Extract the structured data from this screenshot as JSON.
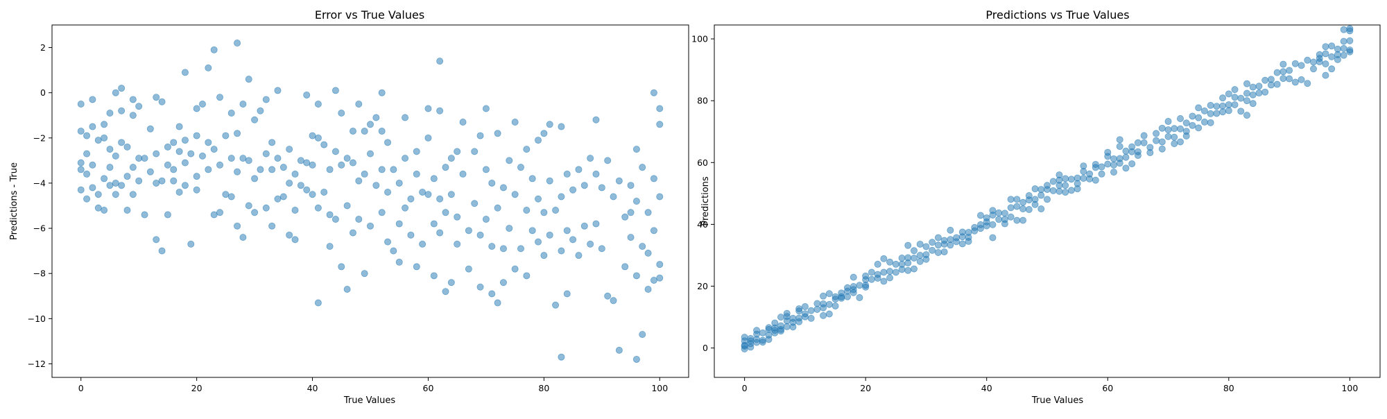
{
  "chart_data": [
    {
      "type": "scatter",
      "title": "Error vs True Values",
      "xlabel": "True Values",
      "ylabel": "Predictions - True",
      "xlim": [
        -5,
        105
      ],
      "ylim": [
        -12.6,
        3.0
      ],
      "xticks": [
        0,
        20,
        40,
        60,
        80,
        100
      ],
      "yticks": [
        -12,
        -10,
        -8,
        -6,
        -4,
        -2,
        0,
        2
      ],
      "grid": false,
      "marker_color": "#1f77b4",
      "marker_opacity": 0.5,
      "points": [
        [
          0,
          -0.5
        ],
        [
          0,
          -1.7
        ],
        [
          0,
          -3.1
        ],
        [
          0,
          -3.4
        ],
        [
          0,
          -4.3
        ],
        [
          1,
          -1.9
        ],
        [
          1,
          -2.7
        ],
        [
          1,
          -3.6
        ],
        [
          1,
          -4.7
        ],
        [
          2,
          -0.3
        ],
        [
          2,
          -1.5
        ],
        [
          2,
          -3.2
        ],
        [
          2,
          -4.2
        ],
        [
          3,
          -2.1
        ],
        [
          3,
          -4.5
        ],
        [
          3,
          -5.1
        ],
        [
          4,
          -1.4
        ],
        [
          4,
          -2.0
        ],
        [
          4,
          -3.8
        ],
        [
          4,
          -5.2
        ],
        [
          5,
          -0.9
        ],
        [
          5,
          -2.5
        ],
        [
          5,
          -3.3
        ],
        [
          5,
          -4.1
        ],
        [
          6,
          0.0
        ],
        [
          6,
          -2.8
        ],
        [
          6,
          -4.0
        ],
        [
          6,
          -4.5
        ],
        [
          7,
          0.2
        ],
        [
          7,
          -0.8
        ],
        [
          7,
          -2.2
        ],
        [
          7,
          -4.1
        ],
        [
          8,
          -2.4
        ],
        [
          8,
          -3.7
        ],
        [
          8,
          -5.2
        ],
        [
          9,
          -0.3
        ],
        [
          9,
          -1.0
        ],
        [
          9,
          -3.3
        ],
        [
          9,
          -4.5
        ],
        [
          10,
          -0.6
        ],
        [
          10,
          -2.9
        ],
        [
          10,
          -3.9
        ],
        [
          11,
          -5.4
        ],
        [
          11,
          -2.9
        ],
        [
          12,
          -1.6
        ],
        [
          12,
          -3.5
        ],
        [
          13,
          -0.2
        ],
        [
          13,
          -2.7
        ],
        [
          13,
          -4.0
        ],
        [
          13,
          -6.5
        ],
        [
          14,
          -0.4
        ],
        [
          14,
          -3.9
        ],
        [
          14,
          -7.0
        ],
        [
          15,
          -2.4
        ],
        [
          15,
          -3.2
        ],
        [
          15,
          -5.4
        ],
        [
          16,
          -2.2
        ],
        [
          16,
          -3.4
        ],
        [
          16,
          -3.9
        ],
        [
          17,
          -1.5
        ],
        [
          17,
          -2.6
        ],
        [
          17,
          -4.4
        ],
        [
          18,
          -2.1
        ],
        [
          18,
          -3.1
        ],
        [
          18,
          -4.1
        ],
        [
          18,
          0.9
        ],
        [
          19,
          -2.7
        ],
        [
          19,
          -6.7
        ],
        [
          20,
          -0.7
        ],
        [
          20,
          -1.9
        ],
        [
          20,
          -3.7
        ],
        [
          20,
          -4.3
        ],
        [
          21,
          -0.5
        ],
        [
          21,
          -2.8
        ],
        [
          22,
          1.1
        ],
        [
          22,
          -2.2
        ],
        [
          22,
          -3.4
        ],
        [
          23,
          1.9
        ],
        [
          23,
          -2.5
        ],
        [
          23,
          -5.4
        ],
        [
          24,
          -0.2
        ],
        [
          24,
          -3.2
        ],
        [
          24,
          -5.3
        ],
        [
          25,
          -1.9
        ],
        [
          25,
          -4.5
        ],
        [
          26,
          -0.9
        ],
        [
          26,
          -2.9
        ],
        [
          26,
          -4.6
        ],
        [
          27,
          2.2
        ],
        [
          27,
          -1.8
        ],
        [
          27,
          -3.5
        ],
        [
          27,
          -5.9
        ],
        [
          28,
          -0.5
        ],
        [
          28,
          -2.9
        ],
        [
          28,
          -6.4
        ],
        [
          29,
          0.6
        ],
        [
          29,
          -3.0
        ],
        [
          29,
          -5.0
        ],
        [
          30,
          -1.2
        ],
        [
          30,
          -3.8
        ],
        [
          30,
          -5.3
        ],
        [
          31,
          -0.8
        ],
        [
          31,
          -3.4
        ],
        [
          32,
          -0.3
        ],
        [
          32,
          -2.7
        ],
        [
          32,
          -5.1
        ],
        [
          33,
          -2.2
        ],
        [
          33,
          -3.4
        ],
        [
          33,
          -5.9
        ],
        [
          34,
          0.1
        ],
        [
          34,
          -2.9
        ],
        [
          34,
          -4.7
        ],
        [
          35,
          -3.3
        ],
        [
          35,
          -4.6
        ],
        [
          36,
          -2.5
        ],
        [
          36,
          -4.0
        ],
        [
          36,
          -6.3
        ],
        [
          37,
          -3.6
        ],
        [
          37,
          -5.2
        ],
        [
          37,
          -6.5
        ],
        [
          38,
          -3.0
        ],
        [
          38,
          -4.1
        ],
        [
          39,
          -0.1
        ],
        [
          39,
          -3.1
        ],
        [
          39,
          -4.3
        ],
        [
          40,
          -1.9
        ],
        [
          40,
          -3.2
        ],
        [
          40,
          -4.5
        ],
        [
          41,
          -0.5
        ],
        [
          41,
          -2.0
        ],
        [
          41,
          -5.1
        ],
        [
          41,
          -9.3
        ],
        [
          42,
          -2.3
        ],
        [
          42,
          -4.4
        ],
        [
          43,
          -3.4
        ],
        [
          43,
          -5.4
        ],
        [
          43,
          -6.8
        ],
        [
          44,
          0.1
        ],
        [
          44,
          -2.6
        ],
        [
          44,
          -5.6
        ],
        [
          45,
          -0.9
        ],
        [
          45,
          -3.2
        ],
        [
          45,
          -7.7
        ],
        [
          46,
          -2.9
        ],
        [
          46,
          -5.0
        ],
        [
          46,
          -8.7
        ],
        [
          47,
          -1.7
        ],
        [
          47,
          -3.1
        ],
        [
          47,
          -6.2
        ],
        [
          48,
          -0.5
        ],
        [
          48,
          -3.9
        ],
        [
          48,
          -5.6
        ],
        [
          49,
          -1.7
        ],
        [
          49,
          -3.6
        ],
        [
          49,
          -8.0
        ],
        [
          50,
          -1.4
        ],
        [
          50,
          -2.7
        ],
        [
          50,
          -5.9
        ],
        [
          51,
          -1.1
        ],
        [
          51,
          -4.1
        ],
        [
          52,
          0.0
        ],
        [
          52,
          -1.7
        ],
        [
          52,
          -3.4
        ],
        [
          52,
          -5.3
        ],
        [
          53,
          -2.2
        ],
        [
          53,
          -4.4
        ],
        [
          53,
          -6.6
        ],
        [
          54,
          -3.4
        ],
        [
          54,
          -7.0
        ],
        [
          55,
          -4.0
        ],
        [
          55,
          -5.8
        ],
        [
          55,
          -7.5
        ],
        [
          56,
          -1.1
        ],
        [
          56,
          -2.9
        ],
        [
          56,
          -5.1
        ],
        [
          57,
          -4.7
        ],
        [
          57,
          -6.3
        ],
        [
          58,
          -2.6
        ],
        [
          58,
          -3.6
        ],
        [
          58,
          -7.7
        ],
        [
          59,
          -4.4
        ],
        [
          59,
          -6.7
        ],
        [
          60,
          -0.7
        ],
        [
          60,
          -2.0
        ],
        [
          60,
          -4.5
        ],
        [
          61,
          -3.8
        ],
        [
          61,
          -5.8
        ],
        [
          61,
          -8.1
        ],
        [
          62,
          1.4
        ],
        [
          62,
          -0.8
        ],
        [
          62,
          -4.7
        ],
        [
          62,
          -6.2
        ],
        [
          63,
          -3.3
        ],
        [
          63,
          -5.3
        ],
        [
          63,
          -8.8
        ],
        [
          64,
          -2.9
        ],
        [
          64,
          -4.5
        ],
        [
          64,
          -8.4
        ],
        [
          65,
          -2.6
        ],
        [
          65,
          -5.5
        ],
        [
          65,
          -6.7
        ],
        [
          66,
          -1.3
        ],
        [
          66,
          -3.6
        ],
        [
          67,
          -6.1
        ],
        [
          67,
          -7.8
        ],
        [
          68,
          -2.6
        ],
        [
          68,
          -4.9
        ],
        [
          69,
          -1.9
        ],
        [
          69,
          -6.3
        ],
        [
          69,
          -8.6
        ],
        [
          70,
          -0.7
        ],
        [
          70,
          -3.4
        ],
        [
          70,
          -5.6
        ],
        [
          71,
          -4.0
        ],
        [
          71,
          -6.8
        ],
        [
          71,
          -8.9
        ],
        [
          72,
          -1.8
        ],
        [
          72,
          -5.1
        ],
        [
          72,
          -9.3
        ],
        [
          73,
          -4.2
        ],
        [
          73,
          -6.9
        ],
        [
          73,
          -8.4
        ],
        [
          74,
          -3.0
        ],
        [
          74,
          -6.0
        ],
        [
          75,
          -1.3
        ],
        [
          75,
          -4.5
        ],
        [
          75,
          -7.8
        ],
        [
          76,
          -3.3
        ],
        [
          76,
          -6.9
        ],
        [
          77,
          -2.5
        ],
        [
          77,
          -5.2
        ],
        [
          77,
          -8.1
        ],
        [
          78,
          -3.8
        ],
        [
          78,
          -6.1
        ],
        [
          79,
          -2.1
        ],
        [
          79,
          -4.7
        ],
        [
          79,
          -6.6
        ],
        [
          80,
          -1.8
        ],
        [
          80,
          -5.3
        ],
        [
          80,
          -7.2
        ],
        [
          81,
          -1.4
        ],
        [
          81,
          -3.9
        ],
        [
          81,
          -6.3
        ],
        [
          82,
          -5.2
        ],
        [
          82,
          -9.4
        ],
        [
          83,
          -1.5
        ],
        [
          83,
          -4.6
        ],
        [
          83,
          -7.0
        ],
        [
          83,
          -11.7
        ],
        [
          84,
          -3.6
        ],
        [
          84,
          -6.1
        ],
        [
          84,
          -8.9
        ],
        [
          85,
          -4.3
        ],
        [
          85,
          -6.5
        ],
        [
          86,
          -3.4
        ],
        [
          86,
          -7.2
        ],
        [
          87,
          -4.1
        ],
        [
          87,
          -5.9
        ],
        [
          88,
          -2.9
        ],
        [
          88,
          -6.7
        ],
        [
          89,
          -1.2
        ],
        [
          89,
          -3.6
        ],
        [
          89,
          -5.8
        ],
        [
          90,
          -4.2
        ],
        [
          90,
          -6.9
        ],
        [
          91,
          -3.0
        ],
        [
          91,
          -9.0
        ],
        [
          92,
          -4.6
        ],
        [
          92,
          -9.2
        ],
        [
          93,
          -3.9
        ],
        [
          93,
          -11.4
        ],
        [
          94,
          -5.5
        ],
        [
          94,
          -7.7
        ],
        [
          95,
          -4.1
        ],
        [
          95,
          -5.3
        ],
        [
          95,
          -6.4
        ],
        [
          96,
          -2.5
        ],
        [
          96,
          -4.8
        ],
        [
          96,
          -8.1
        ],
        [
          96,
          -11.8
        ],
        [
          97,
          -3.3
        ],
        [
          97,
          -6.8
        ],
        [
          97,
          -10.7
        ],
        [
          98,
          -5.3
        ],
        [
          98,
          -7.1
        ],
        [
          98,
          -8.7
        ],
        [
          99,
          0.0
        ],
        [
          99,
          -3.8
        ],
        [
          99,
          -6.1
        ],
        [
          99,
          -8.3
        ],
        [
          100,
          -0.7
        ],
        [
          100,
          -1.4
        ],
        [
          100,
          -4.6
        ],
        [
          100,
          -7.6
        ],
        [
          100,
          -8.2
        ]
      ]
    },
    {
      "type": "scatter",
      "title": "Predictions vs True Values",
      "xlabel": "True Values",
      "ylabel": "Predictions",
      "xlim": [
        -5,
        105
      ],
      "ylim": [
        -9.5,
        104.5
      ],
      "xticks": [
        0,
        20,
        40,
        60,
        80,
        100
      ],
      "yticks": [
        0,
        20,
        40,
        60,
        80,
        100
      ],
      "grid": false,
      "marker_color": "#1f77b4",
      "marker_opacity": 0.5,
      "relationship": "predictions = true + error (same points as left panel)"
    }
  ]
}
